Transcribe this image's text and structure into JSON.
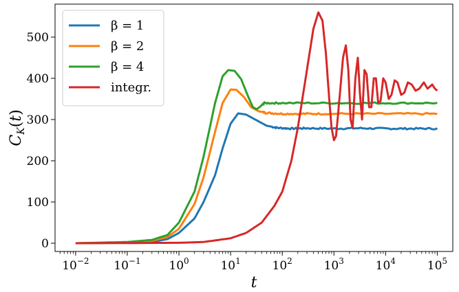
{
  "chart_data": {
    "type": "line",
    "title": "",
    "xlabel": "t",
    "ylabel": "C_K(t)",
    "xscale": "log",
    "xlim": [
      0.004,
      200000
    ],
    "ylim": [
      -20,
      580
    ],
    "grid": false,
    "legend": "top-left",
    "x_ticks": [
      {
        "value": 0.01,
        "mantissa": "10",
        "exp": "−2"
      },
      {
        "value": 0.1,
        "mantissa": "10",
        "exp": "−1"
      },
      {
        "value": 1,
        "mantissa": "10",
        "exp": "0"
      },
      {
        "value": 10,
        "mantissa": "10",
        "exp": "1"
      },
      {
        "value": 100,
        "mantissa": "10",
        "exp": "2"
      },
      {
        "value": 1000,
        "mantissa": "10",
        "exp": "3"
      },
      {
        "value": 10000,
        "mantissa": "10",
        "exp": "4"
      },
      {
        "value": 100000,
        "mantissa": "10",
        "exp": "5"
      }
    ],
    "y_ticks": [
      0,
      100,
      200,
      300,
      400,
      500
    ],
    "series": [
      {
        "name": "β = 1",
        "color": "#1f77b4",
        "points": [
          [
            0.01,
            0
          ],
          [
            0.1,
            1
          ],
          [
            0.3,
            3
          ],
          [
            0.6,
            10
          ],
          [
            1,
            25
          ],
          [
            2,
            60
          ],
          [
            3,
            100
          ],
          [
            5,
            165
          ],
          [
            7,
            230
          ],
          [
            10,
            290
          ],
          [
            14,
            315
          ],
          [
            20,
            312
          ],
          [
            30,
            300
          ],
          [
            50,
            285
          ],
          [
            80,
            280
          ],
          [
            150,
            278
          ],
          [
            300,
            279
          ],
          [
            1000,
            278
          ],
          [
            3000,
            279
          ],
          [
            10000,
            278
          ],
          [
            30000,
            278
          ],
          [
            100000,
            278
          ]
        ],
        "noise": 2,
        "noise_from": 60
      },
      {
        "name": "β = 2",
        "color": "#ff7f0e",
        "points": [
          [
            0.01,
            0
          ],
          [
            0.1,
            2
          ],
          [
            0.3,
            6
          ],
          [
            0.6,
            15
          ],
          [
            1,
            35
          ],
          [
            2,
            95
          ],
          [
            3,
            160
          ],
          [
            5,
            270
          ],
          [
            7,
            340
          ],
          [
            10,
            373
          ],
          [
            13,
            372
          ],
          [
            18,
            355
          ],
          [
            25,
            330
          ],
          [
            35,
            320
          ],
          [
            50,
            316
          ],
          [
            100,
            314
          ],
          [
            300,
            314
          ],
          [
            1000,
            314
          ],
          [
            10000,
            314
          ],
          [
            100000,
            314
          ]
        ],
        "noise": 2,
        "noise_from": 40
      },
      {
        "name": "β = 4",
        "color": "#2ca02c",
        "points": [
          [
            0.01,
            0
          ],
          [
            0.1,
            3
          ],
          [
            0.3,
            8
          ],
          [
            0.6,
            20
          ],
          [
            1,
            50
          ],
          [
            2,
            125
          ],
          [
            3,
            210
          ],
          [
            5,
            340
          ],
          [
            7,
            405
          ],
          [
            9,
            420
          ],
          [
            12,
            418
          ],
          [
            16,
            398
          ],
          [
            22,
            355
          ],
          [
            27,
            330
          ],
          [
            32,
            325
          ],
          [
            38,
            332
          ],
          [
            45,
            340
          ],
          [
            100,
            340
          ],
          [
            1000,
            340
          ],
          [
            10000,
            340
          ],
          [
            100000,
            340
          ]
        ],
        "noise": 2,
        "noise_from": 40
      },
      {
        "name": "integr.",
        "color": "#d62728",
        "points": [
          [
            0.01,
            0
          ],
          [
            1,
            1
          ],
          [
            3,
            3
          ],
          [
            10,
            12
          ],
          [
            20,
            25
          ],
          [
            40,
            50
          ],
          [
            70,
            90
          ],
          [
            100,
            125
          ],
          [
            150,
            200
          ],
          [
            200,
            280
          ],
          [
            300,
            420
          ],
          [
            400,
            520
          ],
          [
            500,
            560
          ],
          [
            600,
            540
          ],
          [
            700,
            460
          ],
          [
            800,
            360
          ],
          [
            900,
            280
          ],
          [
            1000,
            250
          ],
          [
            1100,
            260
          ],
          [
            1300,
            360
          ],
          [
            1500,
            450
          ],
          [
            1700,
            480
          ],
          [
            1900,
            420
          ],
          [
            2100,
            300
          ],
          [
            2300,
            280
          ],
          [
            2600,
            400
          ],
          [
            2900,
            450
          ],
          [
            3200,
            360
          ],
          [
            3500,
            300
          ],
          [
            3900,
            420
          ],
          [
            4300,
            410
          ],
          [
            4800,
            330
          ],
          [
            5300,
            330
          ],
          [
            5900,
            400
          ],
          [
            6500,
            400
          ],
          [
            7200,
            340
          ],
          [
            8000,
            345
          ],
          [
            9000,
            400
          ],
          [
            10000,
            390
          ],
          [
            11500,
            350
          ],
          [
            13000,
            360
          ],
          [
            15000,
            395
          ],
          [
            17000,
            390
          ],
          [
            20000,
            360
          ],
          [
            23000,
            365
          ],
          [
            27000,
            390
          ],
          [
            32000,
            385
          ],
          [
            38000,
            370
          ],
          [
            45000,
            375
          ],
          [
            55000,
            390
          ],
          [
            65000,
            375
          ],
          [
            80000,
            385
          ],
          [
            90000,
            375
          ],
          [
            100000,
            370
          ]
        ],
        "noise": 0,
        "noise_from": 0
      }
    ]
  }
}
